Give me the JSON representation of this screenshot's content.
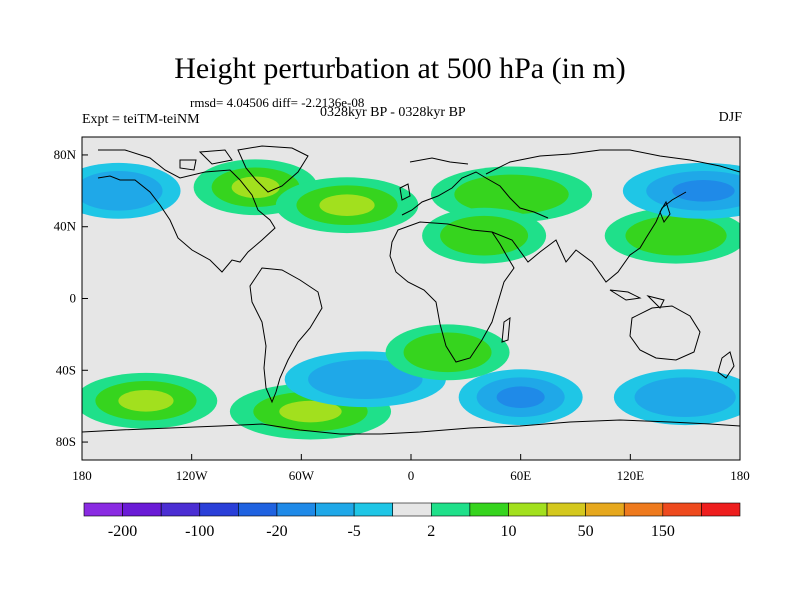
{
  "title": "Height perturbation at 500 hPa (in m)",
  "stats_line": "rmsd= 4.04506 diff= -2.2136e-08",
  "left_label": "Expt = teiTM-teiNM",
  "center_label": "0328kyr BP - 0328kyr BP",
  "right_label": "DJF",
  "chart_data": {
    "type": "heatmap",
    "projection": "cylindrical-equidistant",
    "field": "500 hPa height perturbation (m)",
    "xlim": [
      -180,
      180
    ],
    "ylim": [
      -90,
      90
    ],
    "x_ticks": [
      "180",
      "120W",
      "60W",
      "0",
      "60E",
      "120E",
      "180"
    ],
    "y_ticks": [
      "80N",
      "40N",
      "0",
      "40S",
      "80S"
    ],
    "colorbar": {
      "colors": [
        "#8a2be2",
        "#6a1bd6",
        "#4b2ed3",
        "#2a3fd8",
        "#1f62e0",
        "#1f8ae8",
        "#1fa8e8",
        "#1fc6e6",
        "#e6e6e6",
        "#1fe08a",
        "#36d41e",
        "#a2e01e",
        "#d4c81e",
        "#e6a81e",
        "#ee7a1e",
        "#ee4a1e",
        "#ee1e1e"
      ],
      "labels": [
        "-200",
        "-100",
        "-20",
        "-5",
        "2",
        "10",
        "50",
        "150"
      ]
    },
    "features": [
      {
        "lon": -85,
        "lat": 62,
        "value": 10
      },
      {
        "lon": -35,
        "lat": 52,
        "value": 10
      },
      {
        "lon": 55,
        "lat": 58,
        "value": 5
      },
      {
        "lon": 40,
        "lat": 35,
        "value": 5
      },
      {
        "lon": 145,
        "lat": 35,
        "value": 5
      },
      {
        "lon": 160,
        "lat": 60,
        "value": -10
      },
      {
        "lon": -160,
        "lat": 60,
        "value": -8
      },
      {
        "lon": -145,
        "lat": -57,
        "value": 10
      },
      {
        "lon": -55,
        "lat": -63,
        "value": 10
      },
      {
        "lon": 60,
        "lat": -55,
        "value": -10
      },
      {
        "lon": 150,
        "lat": -55,
        "value": -8
      },
      {
        "lon": -25,
        "lat": -45,
        "value": -8
      },
      {
        "lon": 20,
        "lat": -30,
        "value": 5
      }
    ]
  }
}
